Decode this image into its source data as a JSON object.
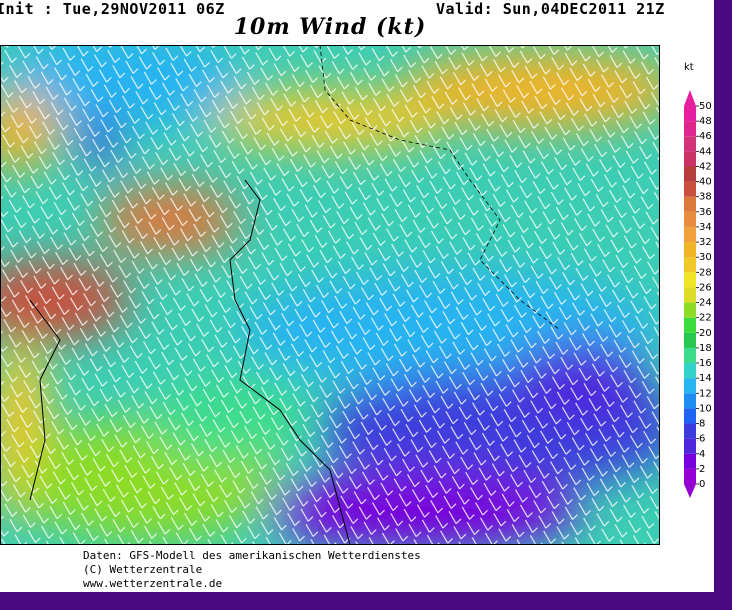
{
  "header": {
    "init": "Init : Tue,29NOV2011 06Z",
    "valid": "Valid: Sun,04DEC2011 21Z",
    "title": "10m Wind (kt)"
  },
  "colorbar": {
    "unit": "kt",
    "ticks": [
      0,
      2,
      4,
      6,
      8,
      10,
      12,
      14,
      16,
      18,
      20,
      22,
      24,
      26,
      28,
      30,
      32,
      34,
      36,
      38,
      40,
      42,
      44,
      46,
      48,
      50
    ],
    "colors": [
      "#9600d2",
      "#7800dc",
      "#5028dc",
      "#3c3cdc",
      "#1e64f0",
      "#1e8cf0",
      "#28b4f0",
      "#32d2c8",
      "#3cdc8c",
      "#28c850",
      "#3cdc3c",
      "#8cdc28",
      "#dcdc28",
      "#f0e628",
      "#f0c828",
      "#f0b428",
      "#f0a03c",
      "#e68c3c",
      "#dc783c",
      "#c8503c",
      "#b43c3c",
      "#c83264",
      "#d23278",
      "#dc288c",
      "#e61ea0"
    ]
  },
  "footer": {
    "lines": [
      "Daten: GFS-Modell des amerikanischen Wetterdienstes",
      "(C) Wetterzentrale",
      "www.wetterzentrale.de"
    ]
  }
}
